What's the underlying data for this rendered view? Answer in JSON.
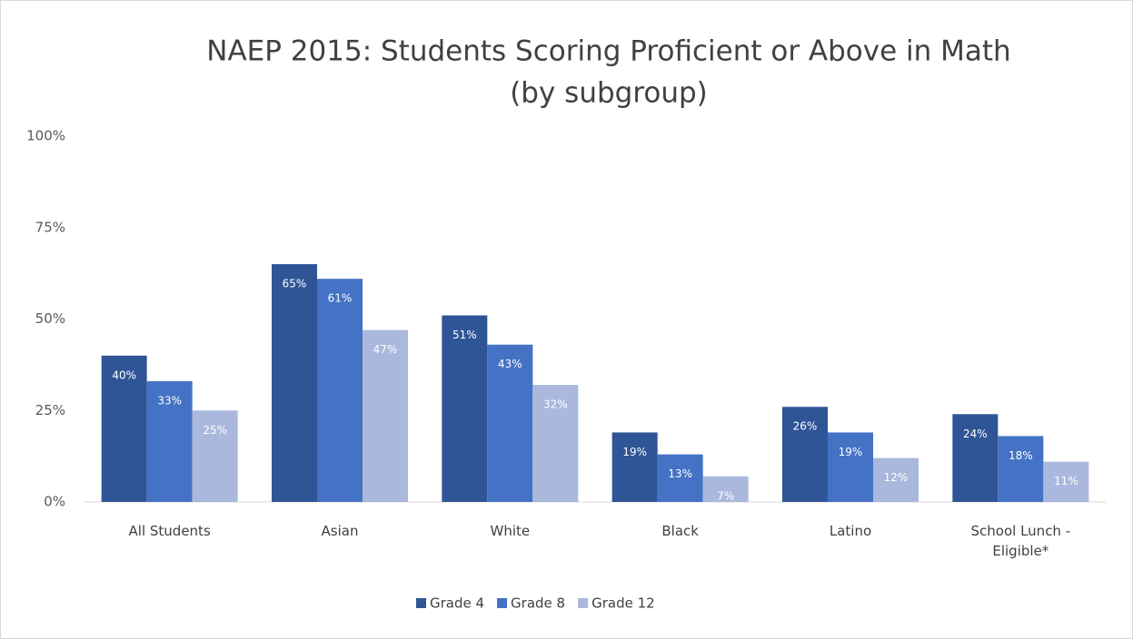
{
  "chart_data": {
    "type": "bar",
    "title": "NAEP 2015: Students Scoring Proficient or Above in Math",
    "subtitle": "(by subgroup)",
    "categories": [
      "All Students",
      "Asian",
      "White",
      "Black",
      "Latino",
      "School Lunch - Eligible*"
    ],
    "series": [
      {
        "name": "Grade 4",
        "color": "#2f5597",
        "values": [
          40,
          65,
          51,
          19,
          26,
          24
        ],
        "value_labels": [
          "40%",
          "65%",
          "51%",
          "19%",
          "26%",
          "24%"
        ]
      },
      {
        "name": "Grade 8",
        "color": "#4472c4",
        "values": [
          33,
          61,
          43,
          13,
          19,
          18
        ],
        "value_labels": [
          "33%",
          "61%",
          "43%",
          "13%",
          "19%",
          "18%"
        ]
      },
      {
        "name": "Grade 12",
        "color": "#a9b8dc",
        "values": [
          25,
          47,
          32,
          7,
          12,
          11
        ],
        "value_labels": [
          "25%",
          "47%",
          "32%",
          "7%",
          "12%",
          "11%"
        ]
      }
    ],
    "ylim": [
      0,
      100
    ],
    "yticks": [
      {
        "value": 0,
        "label": "0%"
      },
      {
        "value": 25,
        "label": "25%"
      },
      {
        "value": 50,
        "label": "50%"
      },
      {
        "value": 75,
        "label": "75%"
      },
      {
        "value": 100,
        "label": "100%"
      }
    ],
    "grid": false,
    "legend": "bottom"
  }
}
